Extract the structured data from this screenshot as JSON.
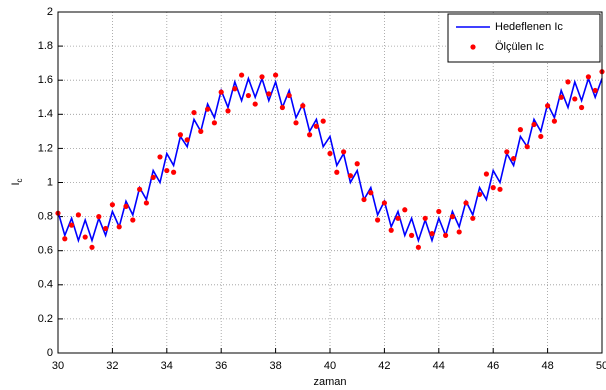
{
  "chart_data": {
    "type": "line",
    "xlabel": "zaman",
    "ylabel": "I",
    "ylabel_subscript": "c",
    "xlim": [
      30,
      50
    ],
    "ylim": [
      0,
      2
    ],
    "xticks": [
      30,
      32,
      34,
      36,
      38,
      40,
      42,
      44,
      46,
      48,
      50
    ],
    "yticks": [
      0,
      0.2,
      0.4,
      0.6,
      0.8,
      1,
      1.2,
      1.4,
      1.6,
      1.8,
      2
    ],
    "grid": true,
    "legend": "upper right",
    "x": [
      30,
      30.25,
      30.5,
      30.75,
      31,
      31.25,
      31.5,
      31.75,
      32,
      32.25,
      32.5,
      32.75,
      33,
      33.25,
      33.5,
      33.75,
      34,
      34.25,
      34.5,
      34.75,
      35,
      35.25,
      35.5,
      35.75,
      36,
      36.25,
      36.5,
      36.75,
      37,
      37.25,
      37.5,
      37.75,
      38,
      38.25,
      38.5,
      38.75,
      39,
      39.25,
      39.5,
      39.75,
      40,
      40.25,
      40.5,
      40.75,
      41,
      41.25,
      41.5,
      41.75,
      42,
      42.25,
      42.5,
      42.75,
      43,
      43.25,
      43.5,
      43.75,
      44,
      44.25,
      44.5,
      44.75,
      45,
      45.25,
      45.5,
      45.75,
      46,
      46.25,
      46.5,
      46.75,
      47,
      47.25,
      47.5,
      47.75,
      48,
      48.25,
      48.5,
      48.75,
      49,
      49.25,
      49.5,
      49.75,
      50
    ],
    "series": [
      {
        "name": "Hedeflenen Ic",
        "color": "#0000ff",
        "mode": "line",
        "values": [
          0.83,
          0.69,
          0.79,
          0.66,
          0.78,
          0.66,
          0.79,
          0.69,
          0.83,
          0.74,
          0.89,
          0.81,
          0.97,
          0.9,
          1.07,
          1.0,
          1.17,
          1.1,
          1.27,
          1.21,
          1.37,
          1.3,
          1.46,
          1.38,
          1.54,
          1.44,
          1.59,
          1.48,
          1.61,
          1.5,
          1.61,
          1.48,
          1.59,
          1.44,
          1.54,
          1.38,
          1.46,
          1.3,
          1.37,
          1.21,
          1.27,
          1.1,
          1.17,
          1.0,
          1.07,
          0.9,
          0.97,
          0.81,
          0.89,
          0.74,
          0.83,
          0.69,
          0.79,
          0.66,
          0.78,
          0.66,
          0.79,
          0.69,
          0.83,
          0.74,
          0.89,
          0.81,
          0.97,
          0.9,
          1.07,
          1.0,
          1.17,
          1.1,
          1.27,
          1.21,
          1.37,
          1.3,
          1.46,
          1.38,
          1.54,
          1.44,
          1.59,
          1.48,
          1.61,
          1.5,
          1.61
        ]
      },
      {
        "name": "Ölçülen Ic",
        "color": "#ff0000",
        "mode": "markers",
        "values": [
          0.82,
          0.67,
          0.75,
          0.81,
          0.68,
          0.62,
          0.8,
          0.73,
          0.87,
          0.74,
          0.86,
          0.78,
          0.96,
          0.88,
          1.03,
          1.15,
          1.07,
          1.06,
          1.28,
          1.25,
          1.41,
          1.3,
          1.43,
          1.35,
          1.53,
          1.42,
          1.55,
          1.63,
          1.51,
          1.46,
          1.62,
          1.52,
          1.63,
          1.44,
          1.51,
          1.35,
          1.45,
          1.28,
          1.33,
          1.36,
          1.17,
          1.06,
          1.18,
          1.04,
          1.11,
          0.9,
          0.94,
          0.78,
          0.88,
          0.72,
          0.79,
          0.84,
          0.69,
          0.62,
          0.79,
          0.7,
          0.83,
          0.69,
          0.8,
          0.71,
          0.88,
          0.79,
          0.93,
          1.05,
          0.97,
          0.96,
          1.18,
          1.14,
          1.31,
          1.21,
          1.34,
          1.27,
          1.45,
          1.36,
          1.5,
          1.59,
          1.49,
          1.44,
          1.62,
          1.54,
          1.65
        ]
      }
    ]
  }
}
